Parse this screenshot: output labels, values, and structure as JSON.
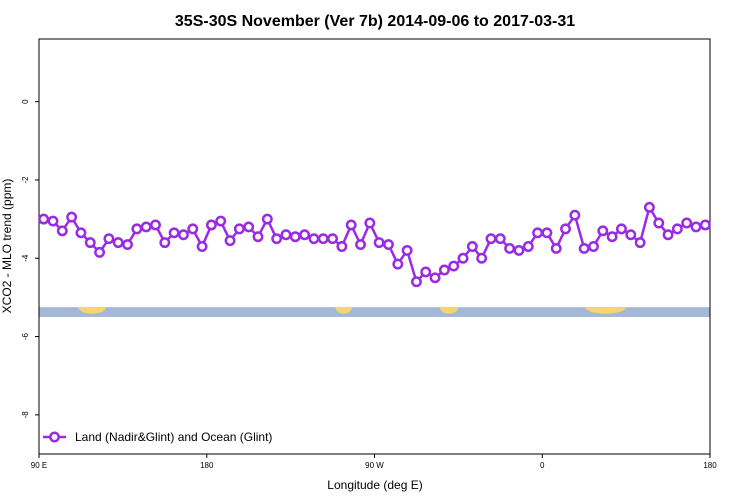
{
  "chart_data": {
    "type": "line",
    "title": "35S-30S November (Ver 7b)   2014-09-06 to 2017-03-31",
    "xlabel": "Longitude (deg E)",
    "ylabel": "XCO2 - MLO trend (ppm)",
    "xlim": [
      90,
      450
    ],
    "ylim": [
      -9,
      1.6
    ],
    "x_ticks": [
      {
        "value": 90,
        "label": "90 E"
      },
      {
        "value": 180,
        "label": "180"
      },
      {
        "value": 270,
        "label": "90 W"
      },
      {
        "value": 360,
        "label": "0"
      },
      {
        "value": 450,
        "label": "180"
      }
    ],
    "y_ticks": [
      {
        "value": 0,
        "label": "0"
      },
      {
        "value": -2,
        "label": "-2"
      },
      {
        "value": -4,
        "label": "-4"
      },
      {
        "value": -6,
        "label": "-6"
      },
      {
        "value": -8,
        "label": "-8"
      }
    ],
    "series": [
      {
        "name": "Land (Nadir&Glint) and Ocean (Glint)",
        "color": "#9a2be2",
        "x": [
          92.5,
          97.5,
          102.5,
          107.5,
          112.5,
          117.5,
          122.5,
          127.5,
          132.5,
          137.5,
          142.5,
          147.5,
          152.5,
          157.5,
          162.5,
          167.5,
          172.5,
          177.5,
          182.5,
          187.5,
          192.5,
          197.5,
          202.5,
          207.5,
          212.5,
          217.5,
          222.5,
          227.5,
          232.5,
          237.5,
          242.5,
          247.5,
          252.5,
          257.5,
          262.5,
          267.5,
          272.5,
          277.5,
          282.5,
          287.5,
          292.5,
          297.5,
          302.5,
          307.5,
          312.5,
          317.5,
          322.5,
          327.5,
          332.5,
          337.5,
          342.5,
          347.5,
          352.5,
          357.5,
          362.5,
          367.5,
          372.5,
          377.5,
          382.5,
          387.5,
          392.5,
          397.5,
          402.5,
          407.5,
          412.5,
          417.5,
          422.5,
          427.5,
          432.5,
          437.5,
          442.5,
          447.5
        ],
        "y": [
          -3.0,
          -3.05,
          -3.3,
          -2.95,
          -3.35,
          -3.6,
          -3.85,
          -3.5,
          -3.6,
          -3.65,
          -3.25,
          -3.2,
          -3.15,
          -3.6,
          -3.35,
          -3.4,
          -3.25,
          -3.7,
          -3.15,
          -3.05,
          -3.55,
          -3.25,
          -3.2,
          -3.45,
          -3.0,
          -3.5,
          -3.4,
          -3.45,
          -3.4,
          -3.5,
          -3.5,
          -3.5,
          -3.7,
          -3.15,
          -3.65,
          -3.1,
          -3.6,
          -3.65,
          -4.15,
          -3.8,
          -4.6,
          -4.35,
          -4.5,
          -4.3,
          -4.2,
          -4.0,
          -3.7,
          -4.0,
          -3.5,
          -3.5,
          -3.75,
          -3.8,
          -3.7,
          -3.35,
          -3.35,
          -3.75,
          -3.25,
          -2.9,
          -3.75,
          -3.7,
          -3.3,
          -3.45,
          -3.25,
          -3.4,
          -3.6,
          -2.7,
          -3.1,
          -3.4,
          -3.25,
          -3.1,
          -3.2,
          -3.15
        ]
      }
    ],
    "land_ocean_strip": {
      "ocean_color": "#a3b8d6",
      "land_color": "#f7d56e",
      "y_range": [
        -5.5,
        -5.25
      ],
      "land_segments": [
        [
          111,
          126
        ],
        [
          249,
          258
        ],
        [
          305,
          315
        ],
        [
          383,
          405
        ]
      ]
    },
    "legend_position": "bottom-left",
    "grid": false
  }
}
